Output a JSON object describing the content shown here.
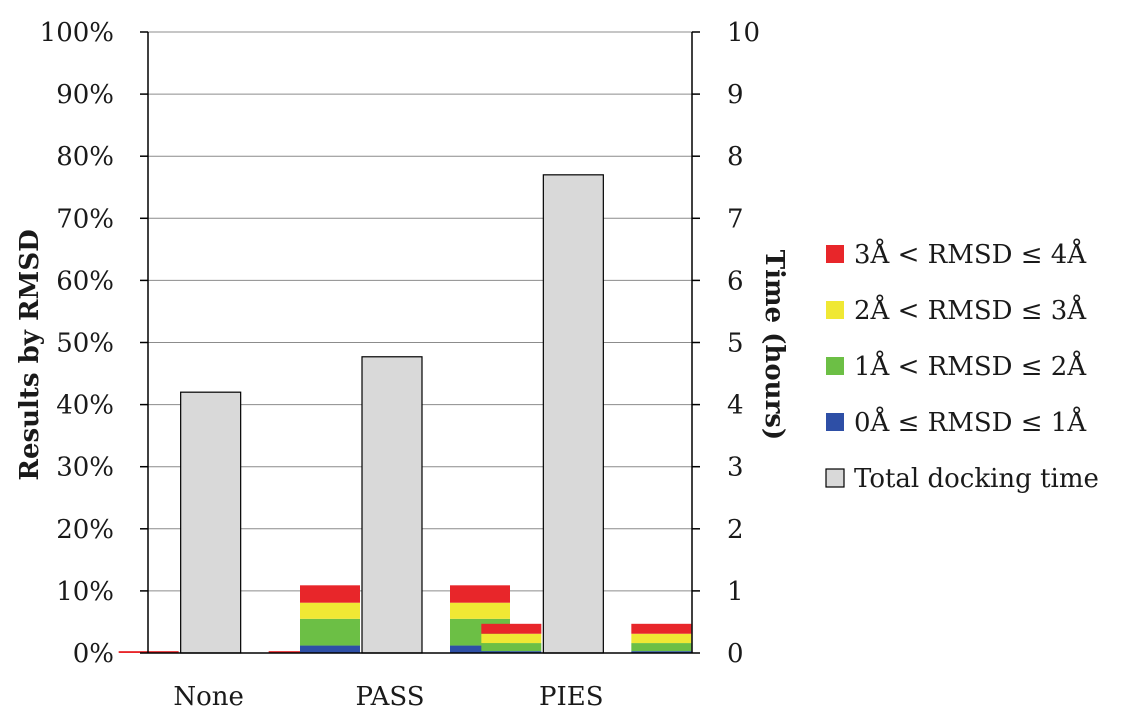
{
  "chart_data": {
    "type": "bar",
    "title": "",
    "categories": [
      "None",
      "PASS",
      "PIES"
    ],
    "ylabel_left": "Results by RMSD",
    "ylabel_right": "Time (hours)",
    "ylim_left": [
      0,
      100
    ],
    "ylim_right": [
      0,
      10
    ],
    "left_ticks": [
      "0%",
      "10%",
      "20%",
      "30%",
      "40%",
      "50%",
      "60%",
      "70%",
      "80%",
      "90%",
      "100%"
    ],
    "right_ticks": [
      "0",
      "1",
      "2",
      "3",
      "4",
      "5",
      "6",
      "7",
      "8",
      "9",
      "10"
    ],
    "grid": true,
    "legend_position": "right",
    "stacked_series": [
      {
        "name": "0Å ≤ RMSD ≤ 1Å",
        "color": "#2e4fa6",
        "values": [
          0.0,
          1.2,
          0.3
        ]
      },
      {
        "name": "1Å < RMSD ≤ 2Å",
        "color": "#6cbf45",
        "values": [
          0.0,
          4.3,
          1.3
        ]
      },
      {
        "name": "2Å < RMSD ≤ 3Å",
        "color": "#f0e834",
        "values": [
          0.0,
          2.6,
          1.5
        ]
      },
      {
        "name": "3Å < RMSD ≤ 4Å",
        "color": "#e8262a",
        "values": [
          0.3,
          2.8,
          1.6
        ]
      }
    ],
    "time_series": {
      "name": "Total docking time",
      "color": "#d9d9d9",
      "values": [
        4.2,
        4.77,
        7.7
      ]
    }
  }
}
